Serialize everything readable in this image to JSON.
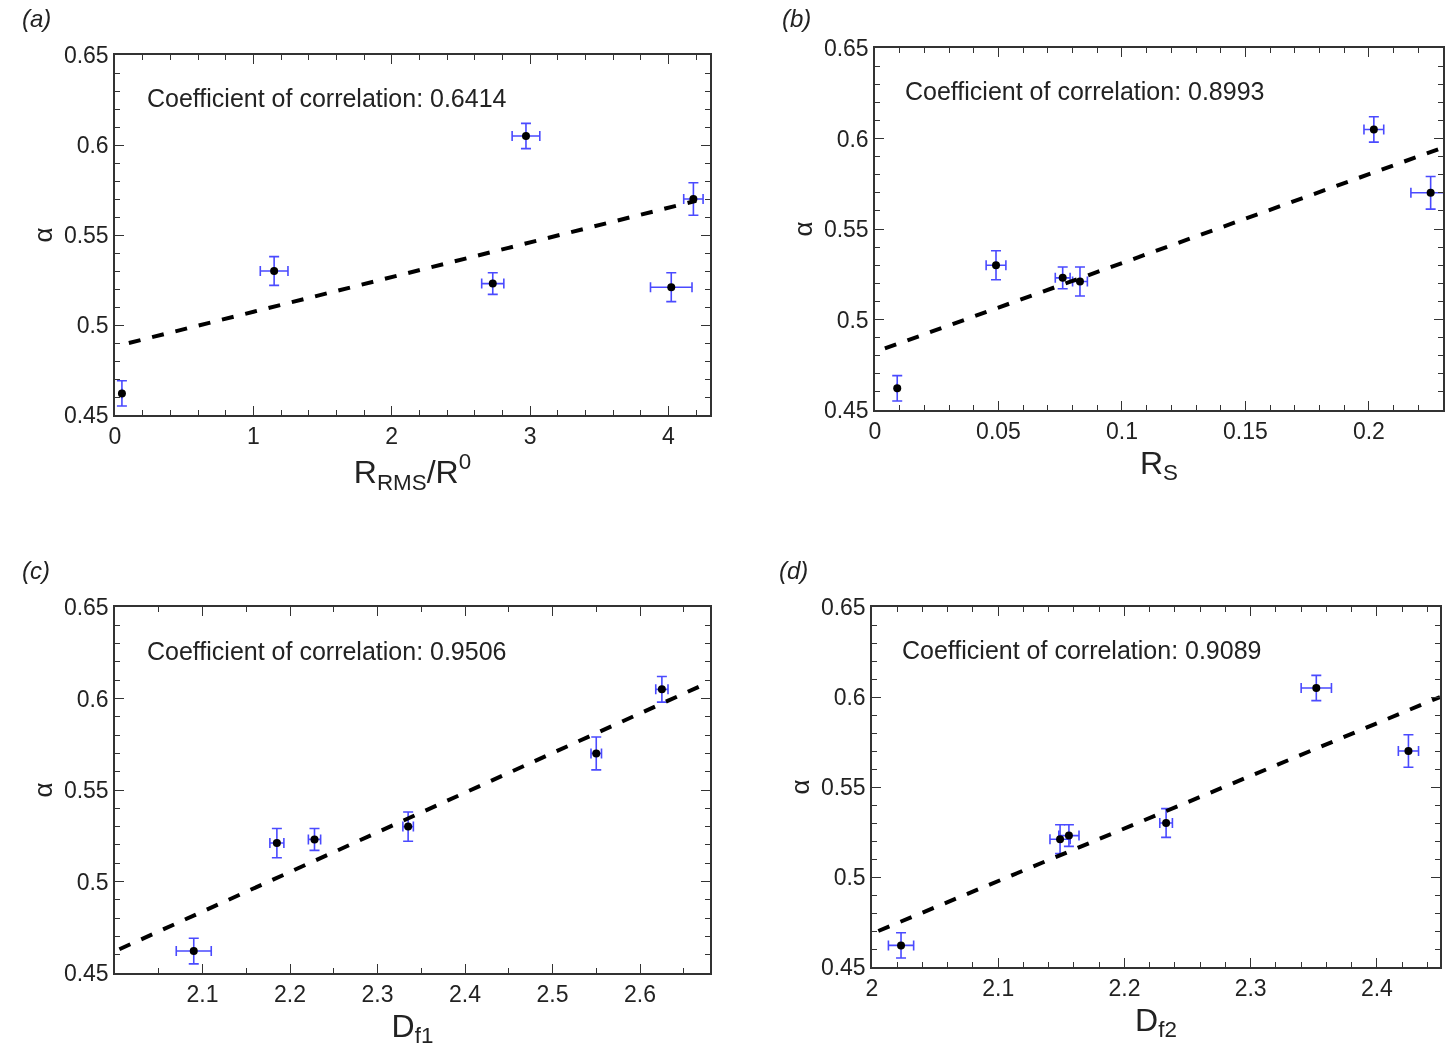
{
  "chart_data": [
    {
      "type": "scatter",
      "title": "(a)",
      "xlabel": "R$_{RMS}$/R$^{0}$",
      "ylabel": "α",
      "annotations": [
        "Coefficient of correlation: 0.6414"
      ],
      "xlim": [
        0,
        4.3
      ],
      "ylim": [
        0.45,
        0.65
      ],
      "xticks": [
        0,
        1,
        2,
        3,
        4
      ],
      "yticks": [
        0.45,
        0.5,
        0.55,
        0.6,
        0.65
      ],
      "marker": "circle",
      "series": [
        {
          "color": "#000000",
          "x": [
            0.05,
            1.15,
            2.73,
            2.97,
            4.02,
            4.18
          ],
          "values": [
            0.462,
            0.53,
            0.523,
            0.605,
            0.521,
            0.57
          ],
          "errors": [
            0.007,
            0.008,
            0.006,
            0.007,
            0.008,
            0.009
          ],
          "xerrors": [
            null,
            0.1,
            0.08,
            0.1,
            0.15,
            0.07
          ]
        },
        {
          "type": "line",
          "color": "#000000",
          "line_style": "dashed",
          "marker": "none",
          "x": [
            0.1,
            4.2
          ],
          "values": [
            0.49,
            0.569
          ]
        }
      ]
    },
    {
      "type": "scatter",
      "title": "(b)",
      "xlabel": "R$_{S}$",
      "ylabel": "α",
      "annotations": [
        "Coefficient of correlation: 0.8993"
      ],
      "xlim": [
        0,
        0.23
      ],
      "ylim": [
        0.45,
        0.65
      ],
      "xticks": [
        0,
        0.05,
        0.1,
        0.15,
        0.2
      ],
      "yticks": [
        0.45,
        0.5,
        0.55,
        0.6,
        0.65
      ],
      "marker": "circle",
      "series": [
        {
          "color": "#000000",
          "x": [
            0.009,
            0.049,
            0.076,
            0.083,
            0.202,
            0.225
          ],
          "values": [
            0.462,
            0.53,
            0.523,
            0.521,
            0.605,
            0.57
          ],
          "errors": [
            0.007,
            0.008,
            0.006,
            0.008,
            0.007,
            0.009
          ],
          "xerrors": [
            null,
            0.004,
            0.003,
            0.003,
            0.004,
            0.008
          ]
        },
        {
          "type": "line",
          "color": "#000000",
          "line_style": "dashed",
          "marker": "none",
          "x": [
            0.004,
            0.23
          ],
          "values": [
            0.484,
            0.595
          ]
        }
      ]
    },
    {
      "type": "scatter",
      "title": "(c)",
      "xlabel": "D$_{f1}$",
      "ylabel": "α",
      "annotations": [
        "Coefficient of correlation: 0.9506"
      ],
      "xlim": [
        2.0,
        2.68
      ],
      "ylim": [
        0.45,
        0.65
      ],
      "xticks": [
        2.1,
        2.2,
        2.3,
        2.4,
        2.5,
        2.6
      ],
      "yticks": [
        0.45,
        0.5,
        0.55,
        0.6,
        0.65
      ],
      "marker": "circle",
      "series": [
        {
          "color": "#000000",
          "x": [
            2.09,
            2.185,
            2.228,
            2.335,
            2.55,
            2.625
          ],
          "values": [
            0.462,
            0.521,
            0.523,
            0.53,
            0.57,
            0.605
          ],
          "errors": [
            0.007,
            0.008,
            0.006,
            0.008,
            0.009,
            0.007
          ],
          "xerrors": [
            0.02,
            0.008,
            0.007,
            0.006,
            0.006,
            0.007
          ]
        },
        {
          "type": "line",
          "color": "#000000",
          "line_style": "dashed",
          "marker": "none",
          "x": [
            2.005,
            2.67
          ],
          "values": [
            0.463,
            0.607
          ]
        }
      ]
    },
    {
      "type": "scatter",
      "title": "(d)",
      "xlabel": "D$_{f2}$",
      "ylabel": "α",
      "annotations": [
        "Coefficient of correlation: 0.9089"
      ],
      "xlim": [
        2,
        2.45
      ],
      "ylim": [
        0.45,
        0.65
      ],
      "xticks": [
        2,
        2.1,
        2.2,
        2.3,
        2.4
      ],
      "yticks": [
        0.45,
        0.5,
        0.55,
        0.6,
        0.65
      ],
      "marker": "circle",
      "series": [
        {
          "color": "#000000",
          "x": [
            2.023,
            2.149,
            2.156,
            2.233,
            2.352,
            2.425
          ],
          "values": [
            0.462,
            0.521,
            0.523,
            0.53,
            0.605,
            0.57
          ],
          "errors": [
            0.007,
            0.008,
            0.006,
            0.008,
            0.007,
            0.009
          ],
          "xerrors": [
            0.01,
            0.008,
            0.008,
            0.005,
            0.012,
            0.008
          ]
        },
        {
          "type": "line",
          "color": "#000000",
          "line_style": "dashed",
          "marker": "none",
          "x": [
            2.005,
            2.45
          ],
          "values": [
            0.47,
            0.6
          ]
        }
      ]
    }
  ]
}
